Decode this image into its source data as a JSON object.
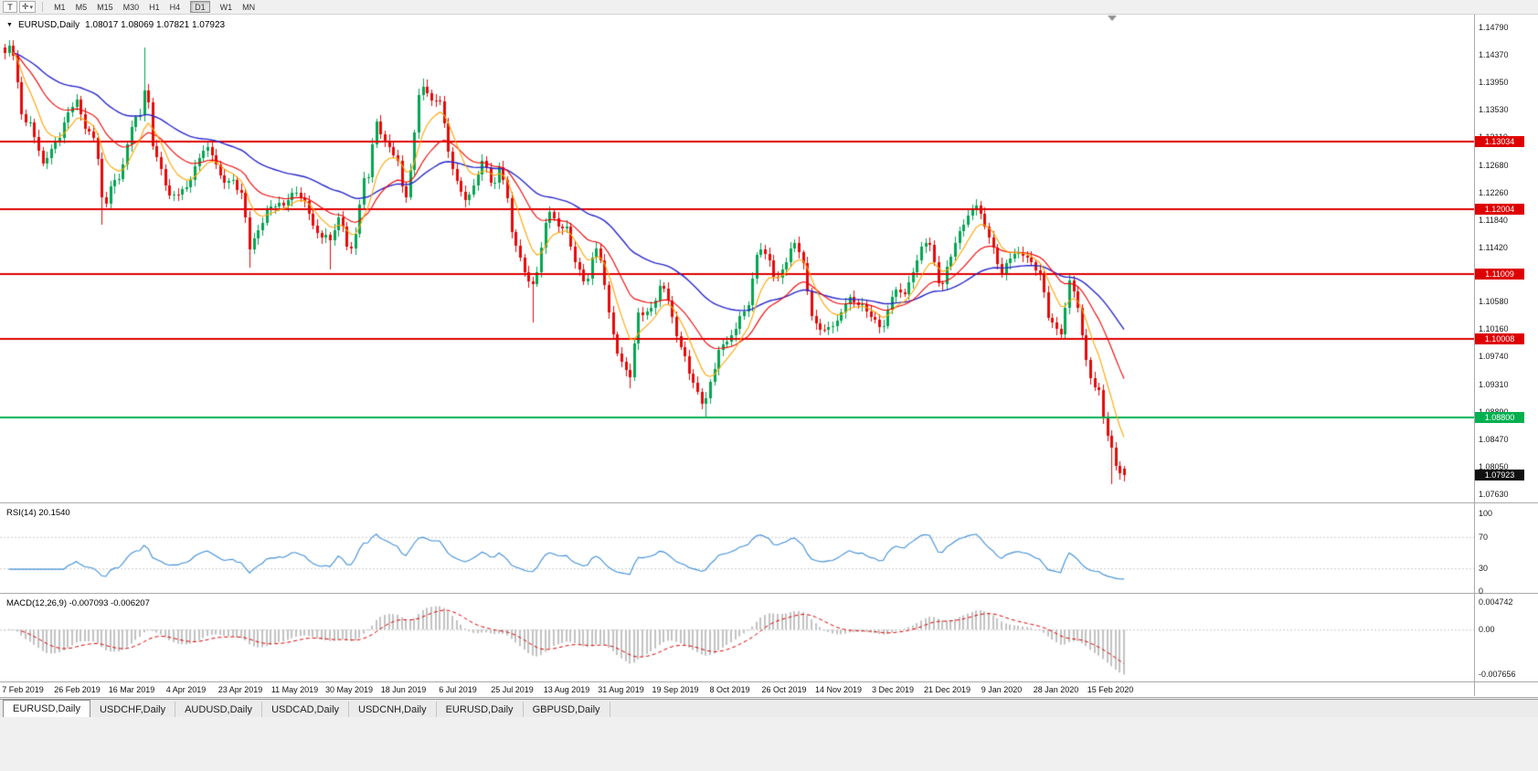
{
  "toolbar": {
    "t_button": "T",
    "tools_icon_glyph": "✛",
    "tools_caret": "▾",
    "timeframes": [
      "M1",
      "M5",
      "M15",
      "M30",
      "H1",
      "H4",
      "D1",
      "W1",
      "MN"
    ],
    "active_timeframe": "D1"
  },
  "chart_header": {
    "collapse_icon": "▼",
    "symbol": "EURUSD,Daily",
    "ohlc": "1.08017 1.08069 1.07821 1.07923"
  },
  "tabs": [
    {
      "label": "EURUSD,Daily",
      "active": true
    },
    {
      "label": "USDCHF,Daily",
      "active": false
    },
    {
      "label": "AUDUSD,Daily",
      "active": false
    },
    {
      "label": "USDCAD,Daily",
      "active": false
    },
    {
      "label": "USDCNH,Daily",
      "active": false
    },
    {
      "label": "EURUSD,Daily",
      "active": false
    },
    {
      "label": "GBPUSD,Daily",
      "active": false
    }
  ],
  "chart_data": {
    "type": "candlestick",
    "title": "EURUSD,Daily",
    "y_axis_top": 1.1479,
    "y_axis_bottom": 1.0763,
    "y_axis_labels": [
      "1.14790",
      "1.14370",
      "1.13950",
      "1.13530",
      "1.13110",
      "1.12680",
      "1.12260",
      "1.11840",
      "1.11420",
      "1.11000",
      "1.10580",
      "1.10160",
      "1.09740",
      "1.09310",
      "1.08890",
      "1.08470",
      "1.08050",
      "1.07630"
    ],
    "x_axis_labels": [
      "7 Feb 2019",
      "26 Feb 2019",
      "16 Mar 2019",
      "4 Apr 2019",
      "23 Apr 2019",
      "11 May 2019",
      "30 May 2019",
      "18 Jun 2019",
      "6 Jul 2019",
      "25 Jul 2019",
      "13 Aug 2019",
      "31 Aug 2019",
      "19 Sep 2019",
      "8 Oct 2019",
      "26 Oct 2019",
      "14 Nov 2019",
      "3 Dec 2019",
      "21 Dec 2019",
      "9 Jan 2020",
      "28 Jan 2020",
      "15 Feb 2020"
    ],
    "last_candle_ohlc": {
      "open": 1.08017,
      "high": 1.08069,
      "low": 1.07821,
      "close": 1.07923
    },
    "current_price_tag": {
      "label": "1.07923",
      "bg": "#101010"
    },
    "horizontal_lines": [
      {
        "price": 1.13034,
        "label": "1.13034",
        "color": "#DE0000"
      },
      {
        "price": 1.12004,
        "label": "1.12004",
        "color": "#DE0000"
      },
      {
        "price": 1.11009,
        "label": "1.11009",
        "color": "#DE0000"
      },
      {
        "price": 1.10008,
        "label": "1.10008",
        "color": "#DE0000"
      },
      {
        "price": 1.088,
        "label": "1.08800",
        "color": "#00B050"
      }
    ],
    "candle_colors": {
      "up": "#00A651",
      "down": "#E60A0A"
    },
    "ma_colors": {
      "fast": "#FFA500",
      "medium": "#F40000",
      "slow": "#2828CC"
    },
    "close_path_waypoints": [
      [
        0.0,
        1.1435
      ],
      [
        0.006,
        1.1452
      ],
      [
        0.016,
        1.134
      ],
      [
        0.024,
        1.133
      ],
      [
        0.034,
        1.1265
      ],
      [
        0.044,
        1.13
      ],
      [
        0.055,
        1.134
      ],
      [
        0.065,
        1.1365
      ],
      [
        0.073,
        1.1325
      ],
      [
        0.081,
        1.1305
      ],
      [
        0.088,
        1.1195
      ],
      [
        0.095,
        1.124
      ],
      [
        0.104,
        1.1255
      ],
      [
        0.113,
        1.1325
      ],
      [
        0.121,
        1.1345
      ],
      [
        0.126,
        1.1408
      ],
      [
        0.132,
        1.13
      ],
      [
        0.14,
        1.125
      ],
      [
        0.147,
        1.1225
      ],
      [
        0.162,
        1.1228
      ],
      [
        0.171,
        1.127
      ],
      [
        0.179,
        1.13
      ],
      [
        0.187,
        1.128
      ],
      [
        0.194,
        1.1235
      ],
      [
        0.203,
        1.125
      ],
      [
        0.211,
        1.1228
      ],
      [
        0.219,
        1.1135
      ],
      [
        0.228,
        1.118
      ],
      [
        0.235,
        1.12
      ],
      [
        0.249,
        1.1207
      ],
      [
        0.26,
        1.1232
      ],
      [
        0.269,
        1.1205
      ],
      [
        0.277,
        1.1162
      ],
      [
        0.285,
        1.1168
      ],
      [
        0.291,
        1.115
      ],
      [
        0.3,
        1.1188
      ],
      [
        0.308,
        1.1132
      ],
      [
        0.314,
        1.117
      ],
      [
        0.32,
        1.1242
      ],
      [
        0.325,
        1.1252
      ],
      [
        0.331,
        1.1337
      ],
      [
        0.338,
        1.1312
      ],
      [
        0.345,
        1.1292
      ],
      [
        0.352,
        1.1262
      ],
      [
        0.357,
        1.1207
      ],
      [
        0.363,
        1.1272
      ],
      [
        0.369,
        1.1372
      ],
      [
        0.375,
        1.1382
      ],
      [
        0.382,
        1.1367
      ],
      [
        0.389,
        1.1372
      ],
      [
        0.396,
        1.1287
      ],
      [
        0.405,
        1.1232
      ],
      [
        0.413,
        1.1212
      ],
      [
        0.421,
        1.1252
      ],
      [
        0.428,
        1.1272
      ],
      [
        0.436,
        1.1227
      ],
      [
        0.442,
        1.1278
      ],
      [
        0.449,
        1.1212
      ],
      [
        0.454,
        1.1147
      ],
      [
        0.462,
        1.1122
      ],
      [
        0.47,
        1.1077
      ],
      [
        0.477,
        1.1112
      ],
      [
        0.485,
        1.12
      ],
      [
        0.491,
        1.1182
      ],
      [
        0.502,
        1.1172
      ],
      [
        0.509,
        1.1112
      ],
      [
        0.52,
        1.1092
      ],
      [
        0.527,
        1.1147
      ],
      [
        0.534,
        1.1102
      ],
      [
        0.545,
        1.0992
      ],
      [
        0.558,
        1.0937
      ],
      [
        0.566,
        1.1037
      ],
      [
        0.575,
        1.1047
      ],
      [
        0.581,
        1.1062
      ],
      [
        0.584,
        1.1075
      ],
      [
        0.591,
        1.1072
      ],
      [
        0.599,
        1.1018
      ],
      [
        0.612,
        1.0942
      ],
      [
        0.625,
        1.09
      ],
      [
        0.63,
        1.0934
      ],
      [
        0.638,
        1.0982
      ],
      [
        0.65,
        1.1007
      ],
      [
        0.656,
        1.1042
      ],
      [
        0.663,
        1.1037
      ],
      [
        0.674,
        1.1152
      ],
      [
        0.682,
        1.1127
      ],
      [
        0.689,
        1.1082
      ],
      [
        0.705,
        1.1153
      ],
      [
        0.712,
        1.1128
      ],
      [
        0.722,
        1.102
      ],
      [
        0.745,
        1.1022
      ],
      [
        0.753,
        1.1072
      ],
      [
        0.76,
        1.1058
      ],
      [
        0.784,
        1.1018
      ],
      [
        0.794,
        1.1078
      ],
      [
        0.802,
        1.1062
      ],
      [
        0.816,
        1.1132
      ],
      [
        0.826,
        1.1147
      ],
      [
        0.836,
        1.108
      ],
      [
        0.855,
        1.1175
      ],
      [
        0.868,
        1.1212
      ],
      [
        0.875,
        1.1172
      ],
      [
        0.89,
        1.1107
      ],
      [
        0.897,
        1.1122
      ],
      [
        0.905,
        1.1128
      ],
      [
        0.911,
        1.1137
      ],
      [
        0.926,
        1.1092
      ],
      [
        0.933,
        1.1027
      ],
      [
        0.944,
        1.1012
      ],
      [
        0.951,
        1.1093
      ],
      [
        0.956,
        1.1062
      ],
      [
        0.963,
        1.1002
      ],
      [
        0.969,
        1.0947
      ],
      [
        0.977,
        1.092
      ],
      [
        0.981,
        1.0875
      ],
      [
        0.989,
        1.0833
      ],
      [
        0.995,
        1.0795
      ],
      [
        0.998,
        1.0805
      ],
      [
        1.0,
        1.07923
      ]
    ],
    "wick_extremes": [
      [
        0.006,
        "high",
        1.146
      ],
      [
        0.088,
        "low",
        1.1176
      ],
      [
        0.126,
        "high",
        1.1448
      ],
      [
        0.219,
        "low",
        1.111
      ],
      [
        0.291,
        "low",
        1.1107
      ],
      [
        0.375,
        "high",
        1.14
      ],
      [
        0.47,
        "low",
        1.1027
      ],
      [
        0.558,
        "low",
        1.0926
      ],
      [
        0.627,
        "low",
        1.0879
      ],
      [
        0.99,
        "low",
        1.0778
      ]
    ],
    "indicators": [
      {
        "name": "RSI",
        "label": "RSI(14) 20.1540",
        "period": 14,
        "last_value": 20.154,
        "levels": [
          70,
          30
        ],
        "color": "#3E8FD8",
        "scale_labels": [
          {
            "label": "100",
            "value": 100
          },
          {
            "label": "70",
            "value": 70
          },
          {
            "label": "30",
            "value": 30
          },
          {
            "label": "0",
            "value": 0
          }
        ]
      },
      {
        "name": "MACD",
        "label": "MACD(12,26,9) -0.007093 -0.006207",
        "fast": 12,
        "slow": 26,
        "signal": 9,
        "last_main": -0.007093,
        "last_signal": -0.006207,
        "histogram_color": "#C2C2C2",
        "signal_color": "#E00000",
        "scale_labels": [
          {
            "label": "0.004742",
            "value": 0.004742
          },
          {
            "label": "0.00",
            "value": 0
          },
          {
            "label": "-0.007656",
            "value": -0.007656
          }
        ]
      }
    ]
  }
}
